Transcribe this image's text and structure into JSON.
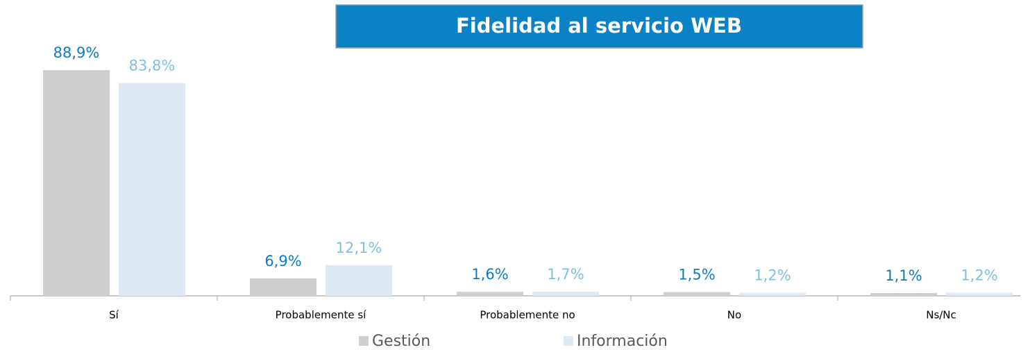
{
  "chart_data": {
    "type": "bar",
    "title": "Fidelidad al servicio WEB",
    "categories": [
      "Sí",
      "Probablemente sí",
      "Probablemente no",
      "No",
      "Ns/Nc"
    ],
    "series": [
      {
        "name": "Gestión",
        "color": "#d0cece",
        "label_color": "#0a7cc4",
        "values": [
          88.9,
          6.9,
          1.6,
          1.5,
          1.1
        ],
        "value_labels": [
          "88,9%",
          "6,9%",
          "1,6%",
          "1,5%",
          "1,1%"
        ]
      },
      {
        "name": "Información",
        "color": "#dde9f5",
        "label_color": "#7fbfe0",
        "values": [
          83.8,
          12.1,
          1.7,
          1.2,
          1.2
        ],
        "value_labels": [
          "83,8%",
          "12,1%",
          "1,7%",
          "1,2%",
          "1,2%"
        ]
      }
    ],
    "title_color": "#0b82c6"
  }
}
